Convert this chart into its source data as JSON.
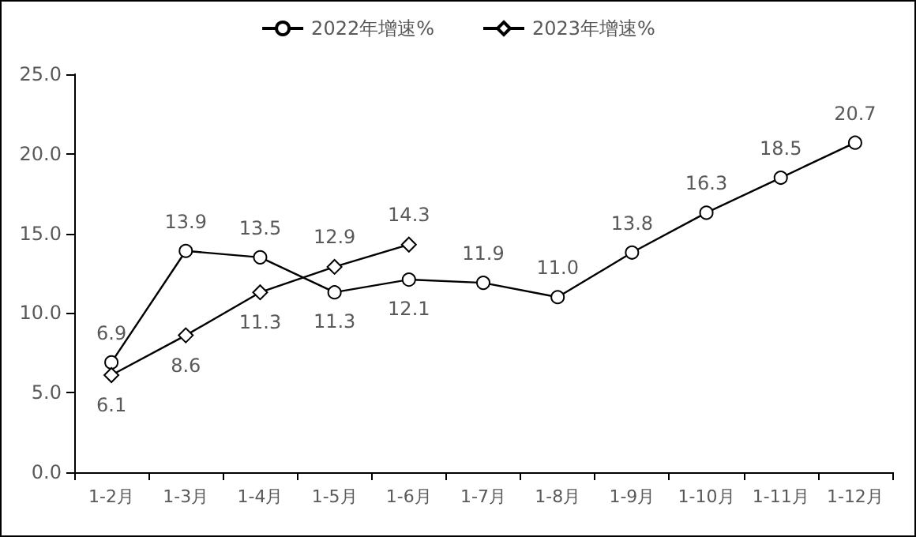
{
  "chart_data": {
    "type": "line",
    "categories": [
      "1-2月",
      "1-3月",
      "1-4月",
      "1-5月",
      "1-6月",
      "1-7月",
      "1-8月",
      "1-9月",
      "1-10月",
      "1-11月",
      "1-12月"
    ],
    "series": [
      {
        "name": "2022年增速%",
        "color": "#000000",
        "marker": "circle",
        "values": [
          6.9,
          13.9,
          13.5,
          11.3,
          12.1,
          11.9,
          11.0,
          13.8,
          16.3,
          18.5,
          20.7
        ],
        "value_labels": [
          "6.9",
          "13.9",
          "13.5",
          "11.3",
          "12.1",
          "11.9",
          "11.0",
          "13.8",
          "16.3",
          "18.5",
          "20.7"
        ]
      },
      {
        "name": "2023年增速%",
        "color": "#000000",
        "marker": "diamond",
        "values": [
          6.1,
          8.6,
          11.3,
          12.9,
          14.3,
          null,
          null,
          null,
          null,
          null,
          null
        ],
        "value_labels": [
          "6.1",
          "8.6",
          "11.3",
          "12.9",
          "14.3",
          null,
          null,
          null,
          null,
          null,
          null
        ]
      }
    ],
    "ylim": [
      0,
      25
    ],
    "yticks": [
      {
        "value": 0,
        "label": "0.0"
      },
      {
        "value": 5,
        "label": "5.0"
      },
      {
        "value": 10,
        "label": "10.0"
      },
      {
        "value": 15,
        "label": "15.0"
      },
      {
        "value": 20,
        "label": "20.0"
      },
      {
        "value": 25,
        "label": "25.0"
      }
    ],
    "grid": false,
    "legend": "top",
    "line_style": "solid"
  }
}
